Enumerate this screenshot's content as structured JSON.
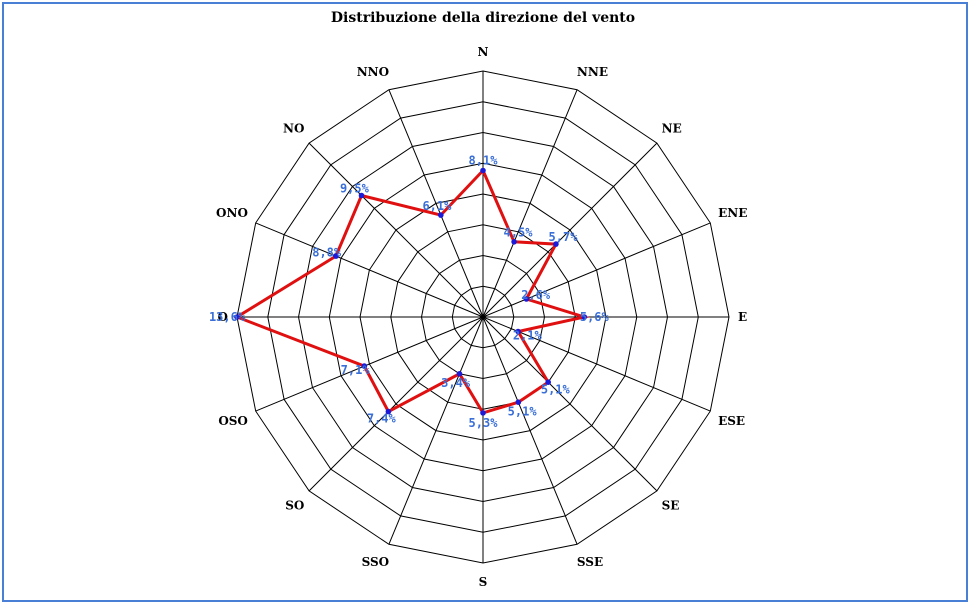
{
  "chart_data": {
    "type": "radar",
    "title": "Distribuzione della direzione del vento",
    "categories": [
      "N",
      "NNE",
      "NE",
      "ENE",
      "E",
      "ESE",
      "SE",
      "SSE",
      "S",
      "SSO",
      "SO",
      "OSO",
      "O",
      "ONO",
      "NO",
      "NNO"
    ],
    "values": [
      8.1,
      4.5,
      5.7,
      2.6,
      5.6,
      2.1,
      5.1,
      5.1,
      5.3,
      3.4,
      7.4,
      7.1,
      13.6,
      8.8,
      9.5,
      6.1
    ],
    "value_labels": [
      "8,1%",
      "4,5%",
      "5,7%",
      "2,6%",
      "5,6%",
      "2,1%",
      "5,1%",
      "5,1%",
      "5,3%",
      "3,4%",
      "7,4%",
      "7,1%",
      "13,6%",
      "8,8%",
      "9,5%",
      "6,1%"
    ],
    "rlim": [
      0,
      13.6
    ],
    "rings": 8,
    "grid": true,
    "colors": {
      "series": "#e01010",
      "points": "#1a1ad8",
      "value_labels": "#3a6fd8",
      "frame": "#4a7fd6"
    }
  }
}
